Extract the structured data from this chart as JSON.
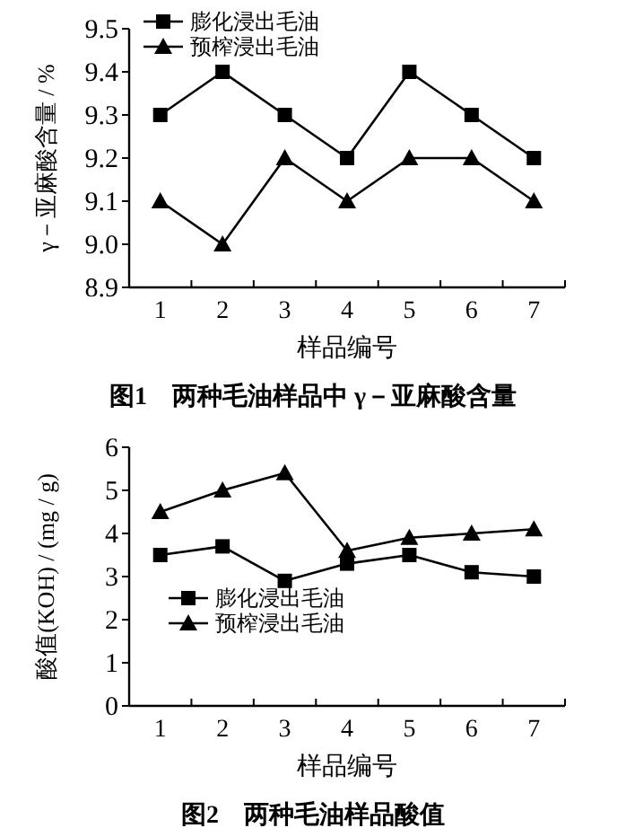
{
  "chart_data": [
    {
      "type": "line",
      "title": "图1　两种毛油样品中 γ－亚麻酸含量",
      "xlabel": "样品编号",
      "ylabel": "γ－亚麻酸含量 / %",
      "categories": [
        "1",
        "2",
        "3",
        "4",
        "5",
        "6",
        "7"
      ],
      "series": [
        {
          "name": "膨化浸出毛油",
          "color": "#000000",
          "marker": "square",
          "values": [
            9.3,
            9.4,
            9.3,
            9.2,
            9.4,
            9.3,
            9.2
          ]
        },
        {
          "name": "预榨浸出毛油",
          "color": "#000000",
          "marker": "triangle",
          "values": [
            9.1,
            9.0,
            9.2,
            9.1,
            9.2,
            9.2,
            9.1
          ]
        }
      ],
      "ylim": [
        8.9,
        9.5
      ],
      "yticks": [
        8.9,
        {
          "value": 9,
          "label": "9.0"
        },
        9.1,
        9.2,
        9.3,
        9.4,
        9.5
      ],
      "legend": "top left",
      "grid": false,
      "line_style": "solid"
    },
    {
      "type": "line",
      "title": "图2　两种毛油样品酸值",
      "xlabel": "样品编号",
      "ylabel": "酸值(KOH) / (mg / g)",
      "categories": [
        "1",
        "2",
        "3",
        "4",
        "5",
        "6",
        "7"
      ],
      "series": [
        {
          "name": "膨化浸出毛油",
          "color": "#000000",
          "marker": "square",
          "values": [
            3.5,
            3.7,
            2.9,
            3.3,
            3.5,
            3.1,
            3.0
          ]
        },
        {
          "name": "预榨浸出毛油",
          "color": "#000000",
          "marker": "triangle",
          "values": [
            4.5,
            5.0,
            5.4,
            3.6,
            3.9,
            4.0,
            4.1
          ]
        }
      ],
      "ylim": [
        0,
        6
      ],
      "yticks": [
        0,
        1,
        2,
        3,
        4,
        5,
        6
      ],
      "legend": "center",
      "grid": false,
      "line_style": "solid"
    }
  ]
}
